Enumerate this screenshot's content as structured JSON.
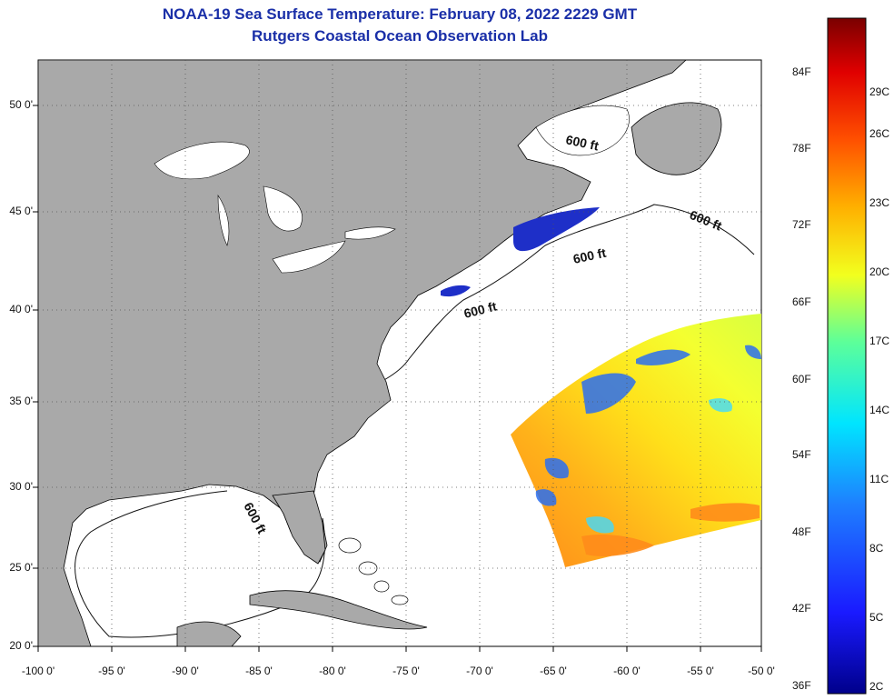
{
  "header": {
    "title": "NOAA-19 Sea Surface Temperature:  February 08, 2022 2229 GMT",
    "subtitle": "Rutgers Coastal Ocean Observation Lab"
  },
  "map": {
    "lat_labels": [
      "50 0'",
      "45 0'",
      "40 0'",
      "35 0'",
      "30 0'",
      "25 0'",
      "20 0'"
    ],
    "lon_labels": [
      "-100 0'",
      "-95 0'",
      "-90 0'",
      "-85 0'",
      "-80 0'",
      "-75 0'",
      "-70 0'",
      "-65 0'",
      "-60 0'",
      "-55 0'",
      "-50 0'"
    ],
    "isobath_label": "600 ft",
    "colors": {
      "land": "#a9a9a9",
      "ocean": "#ffffff",
      "cold_patch": "#1e2fc8"
    }
  },
  "colorbar": {
    "f_labels": [
      "84F",
      "78F",
      "72F",
      "66F",
      "60F",
      "54F",
      "48F",
      "42F",
      "36F"
    ],
    "c_labels": [
      "29C",
      "26C",
      "23C",
      "20C",
      "17C",
      "14C",
      "11C",
      "8C",
      "5C",
      "2C"
    ]
  }
}
